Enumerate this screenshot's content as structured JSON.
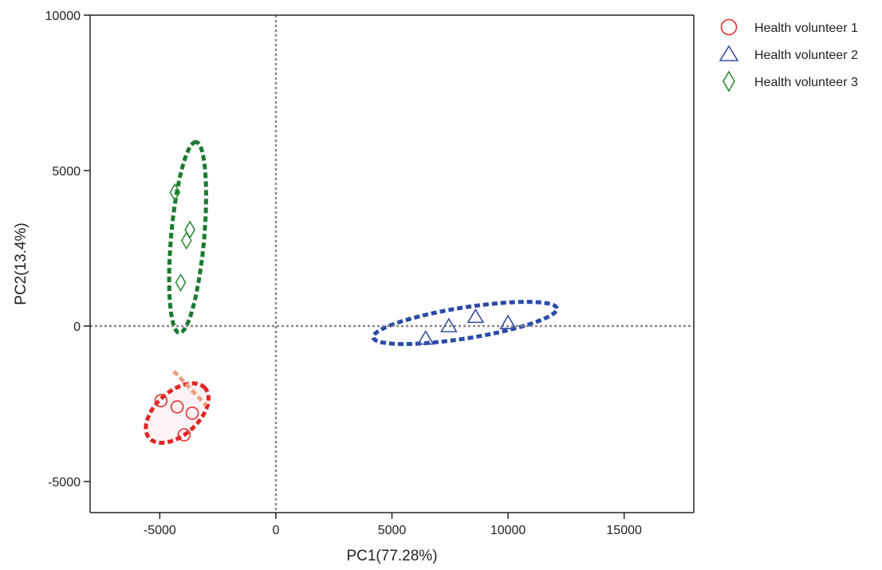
{
  "chart_data": {
    "type": "scatter",
    "xlabel": "PC1(77.28%)",
    "ylabel": "PC2(13.4%)",
    "xlim": [
      -8000,
      18000
    ],
    "ylim": [
      -6000,
      10000
    ],
    "x_ticks": [
      -5000,
      0,
      5000,
      10000,
      15000
    ],
    "x_tick_labels": [
      "-5000",
      "0",
      "5000",
      "10000",
      "15000"
    ],
    "y_ticks": [
      -5000,
      0,
      5000,
      10000
    ],
    "y_tick_labels": [
      "-5000",
      "0",
      "5000",
      "10000"
    ],
    "reference_lines": {
      "x": 0,
      "y": 0
    },
    "grid": false,
    "legend_position": "top-right, outside plot",
    "series": [
      {
        "name": "Health volunteer 1",
        "marker": "circle",
        "color": "#e03030",
        "ellipse_color": "#e02525",
        "ellipse_fill": "#fdf3f5",
        "points": [
          {
            "x": -4950,
            "y": -2400
          },
          {
            "x": -4250,
            "y": -2600
          },
          {
            "x": -3600,
            "y": -2800
          },
          {
            "x": -3950,
            "y": -3500
          }
        ],
        "ellipse": {
          "cx": -4250,
          "cy": -2800,
          "rx": 2600,
          "ry": 1500,
          "angle_deg": 42
        }
      },
      {
        "name": "Health volunteer 2",
        "marker": "triangle",
        "color": "#3a4fa0",
        "ellipse_color": "#2a4aa8",
        "ellipse_fill": "none",
        "points": [
          {
            "x": 6450,
            "y": -400
          },
          {
            "x": 7450,
            "y": 0
          },
          {
            "x": 8600,
            "y": 300
          },
          {
            "x": 10000,
            "y": 100
          }
        ],
        "ellipse": {
          "cx": 8150,
          "cy": 100,
          "rx": 6900,
          "ry": 1150,
          "angle_deg": 9
        }
      },
      {
        "name": "Health volunteer 3",
        "marker": "diamond",
        "color": "#2e8b3a",
        "ellipse_color": "#1a7a30",
        "ellipse_fill": "none",
        "points": [
          {
            "x": -4350,
            "y": 4300
          },
          {
            "x": -3700,
            "y": 3100
          },
          {
            "x": -3850,
            "y": 2750
          },
          {
            "x": -4100,
            "y": 1400
          }
        ],
        "ellipse": {
          "cx": -3800,
          "cy": 2850,
          "rx": 5500,
          "ry": 950,
          "angle_deg": 85
        }
      }
    ],
    "overlap_marker_color": "#f0a080"
  }
}
